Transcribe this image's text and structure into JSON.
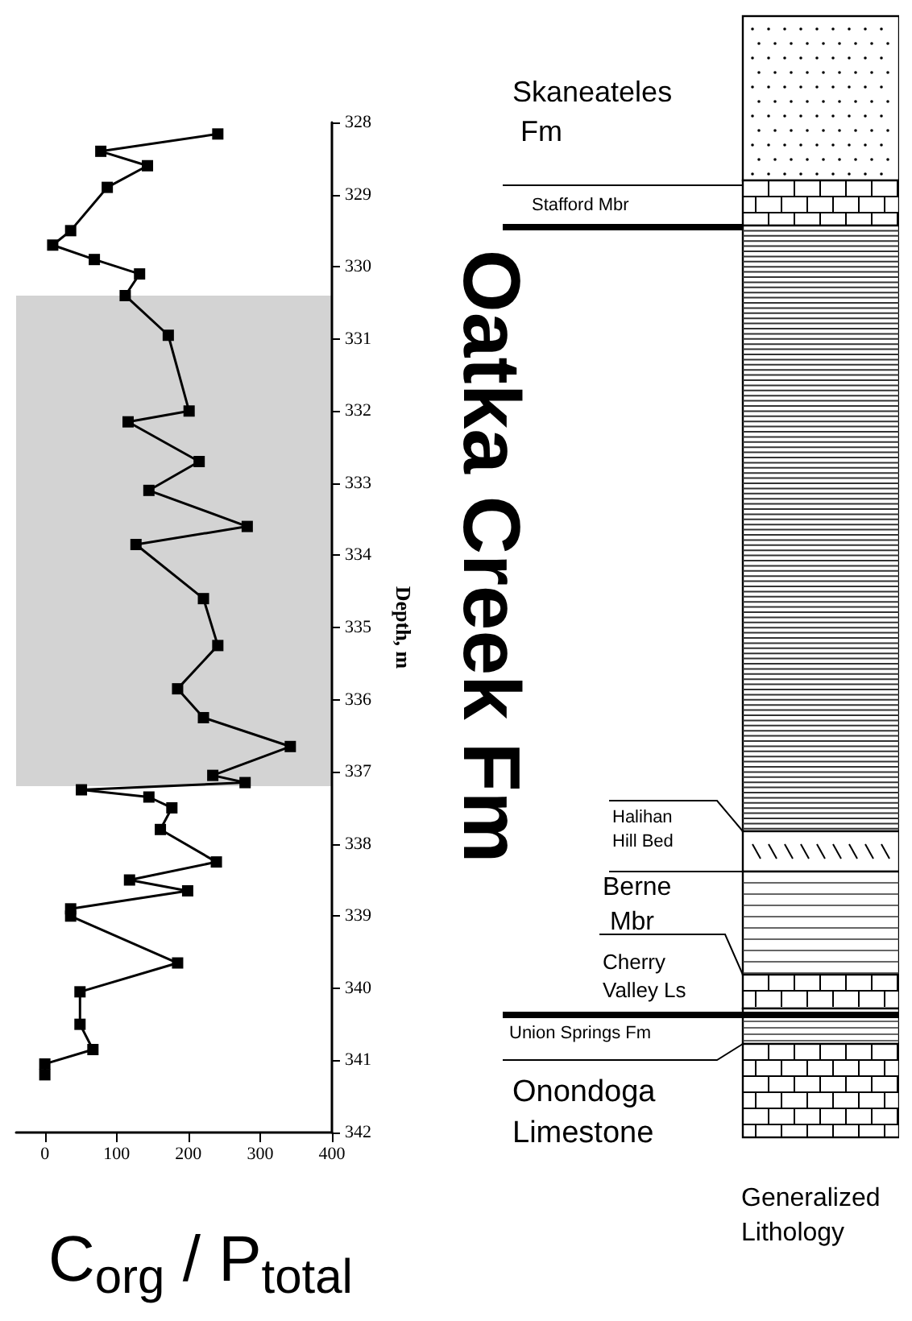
{
  "chart_data": {
    "type": "line",
    "xlabel": "C$_{org}$ / P$_{total}$",
    "ylabel": "Depth, m",
    "x": [
      241,
      78,
      143,
      87,
      36,
      11,
      69,
      132,
      112,
      172,
      201,
      116,
      215,
      145,
      282,
      127,
      221,
      241,
      185,
      221,
      342,
      234,
      279,
      51,
      145,
      177,
      161,
      239,
      118,
      199,
      36,
      36,
      185,
      49,
      49,
      67,
      0,
      0
    ],
    "series": [
      {
        "color": "#000000",
        "values": [
          328.16,
          328.4,
          328.6,
          328.9,
          329.5,
          329.7,
          329.9,
          330.1,
          330.4,
          330.95,
          332.0,
          332.15,
          332.7,
          333.1,
          333.6,
          333.85,
          334.6,
          335.25,
          335.85,
          336.25,
          336.65,
          337.05,
          337.15,
          337.25,
          337.35,
          337.5,
          337.8,
          338.25,
          338.5,
          338.65,
          338.9,
          339.0,
          339.65,
          340.05,
          340.5,
          340.85,
          341.05,
          341.2
        ]
      }
    ],
    "xlim": [
      -40,
      400
    ],
    "xticks": [
      0,
      100,
      200,
      300,
      400
    ],
    "ylim": [
      342,
      328
    ],
    "yticks": [
      328,
      329,
      330,
      331,
      332,
      333,
      334,
      335,
      336,
      337,
      338,
      339,
      340,
      341,
      342
    ],
    "bands": [
      {
        "axis": "y",
        "from": 330.4,
        "to": 337.2,
        "color": "#d3d3d3"
      }
    ],
    "marker": "square",
    "line_style": "solid",
    "grid": false,
    "annotations": [
      "Skaneateles Fm",
      "Stafford Mbr",
      "Oatka Creek Fm",
      "Halihan Hill Bed",
      "Berne Mbr",
      "Cherry Valley Ls",
      "Union Springs Fm",
      "Onondoga Limestone",
      "Generalized Lithology"
    ]
  }
}
